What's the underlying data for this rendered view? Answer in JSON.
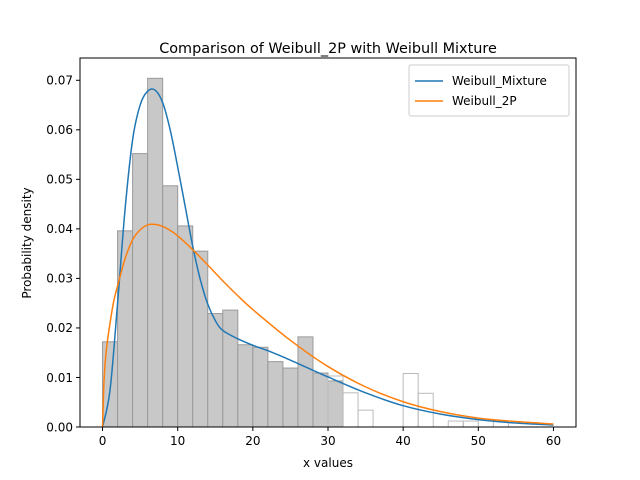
{
  "chart_data": {
    "type": "histogram-with-lines",
    "title": "Comparison of Weibull_2P with Weibull Mixture",
    "xlabel": "x values",
    "ylabel": "Probability density",
    "xlim": [
      -3.0,
      63.0
    ],
    "ylim": [
      0.0,
      0.0745
    ],
    "xticks": [
      0,
      10,
      20,
      30,
      40,
      50,
      60
    ],
    "yticks": [
      0.0,
      0.01,
      0.02,
      0.03,
      0.04,
      0.05,
      0.06,
      0.07
    ],
    "ytick_labels": [
      "0.00",
      "0.01",
      "0.02",
      "0.03",
      "0.04",
      "0.05",
      "0.06",
      "0.07"
    ],
    "legend": {
      "position": "top-right",
      "entries": [
        "Weibull_Mixture",
        "Weibull_2P"
      ]
    },
    "histogram": {
      "bin_width": 2.0,
      "failure_bins_start": 0,
      "failure_values": [
        0.0172,
        0.0396,
        0.0552,
        0.0704,
        0.0487,
        0.0406,
        0.0355,
        0.0229,
        0.0236,
        0.0166,
        0.0161,
        0.0132,
        0.0119,
        0.0182,
        0.0109,
        0.0093
      ],
      "failure_fill": "#c8c8c8",
      "failure_edge": "#9a9a9a",
      "censored_bins_start": 30,
      "censored_values": [
        0.0103,
        0.0069,
        0.0034,
        0.0,
        0.0,
        0.0108,
        0.0068,
        0.0,
        0.0012,
        0.0012,
        0.0,
        0.0012,
        0.0,
        0.0,
        0.0
      ],
      "censored_edge": "#bbbbbb"
    },
    "series": [
      {
        "name": "Weibull_Mixture",
        "color": "#1f77b4",
        "x": [
          0,
          1,
          2,
          3,
          4,
          5,
          6,
          7,
          8,
          9,
          10,
          11,
          12,
          13,
          14,
          15,
          16,
          18,
          20,
          22,
          25,
          30,
          35,
          40,
          45,
          50,
          55,
          60
        ],
        "y": [
          0.0,
          0.0075,
          0.025,
          0.044,
          0.058,
          0.065,
          0.0678,
          0.068,
          0.0655,
          0.06,
          0.0525,
          0.0445,
          0.0365,
          0.0298,
          0.0248,
          0.0215,
          0.0195,
          0.0178,
          0.0165,
          0.0154,
          0.0135,
          0.0101,
          0.0069,
          0.0043,
          0.0026,
          0.0015,
          0.0008,
          0.0004
        ]
      },
      {
        "name": "Weibull_2P",
        "color": "#ff7f0e",
        "x": [
          0,
          0.2,
          0.5,
          1,
          1.5,
          2,
          3,
          4,
          5,
          6,
          7,
          8,
          9,
          10,
          12,
          14,
          16,
          18,
          20,
          25,
          30,
          35,
          40,
          45,
          50,
          55,
          60
        ],
        "y": [
          0.0,
          0.0095,
          0.0155,
          0.021,
          0.0255,
          0.0285,
          0.034,
          0.0378,
          0.0398,
          0.0408,
          0.0409,
          0.0405,
          0.0397,
          0.0386,
          0.0358,
          0.0327,
          0.0295,
          0.0265,
          0.0237,
          0.0175,
          0.0122,
          0.0081,
          0.0051,
          0.0031,
          0.0018,
          0.0011,
          0.0006
        ]
      }
    ]
  }
}
